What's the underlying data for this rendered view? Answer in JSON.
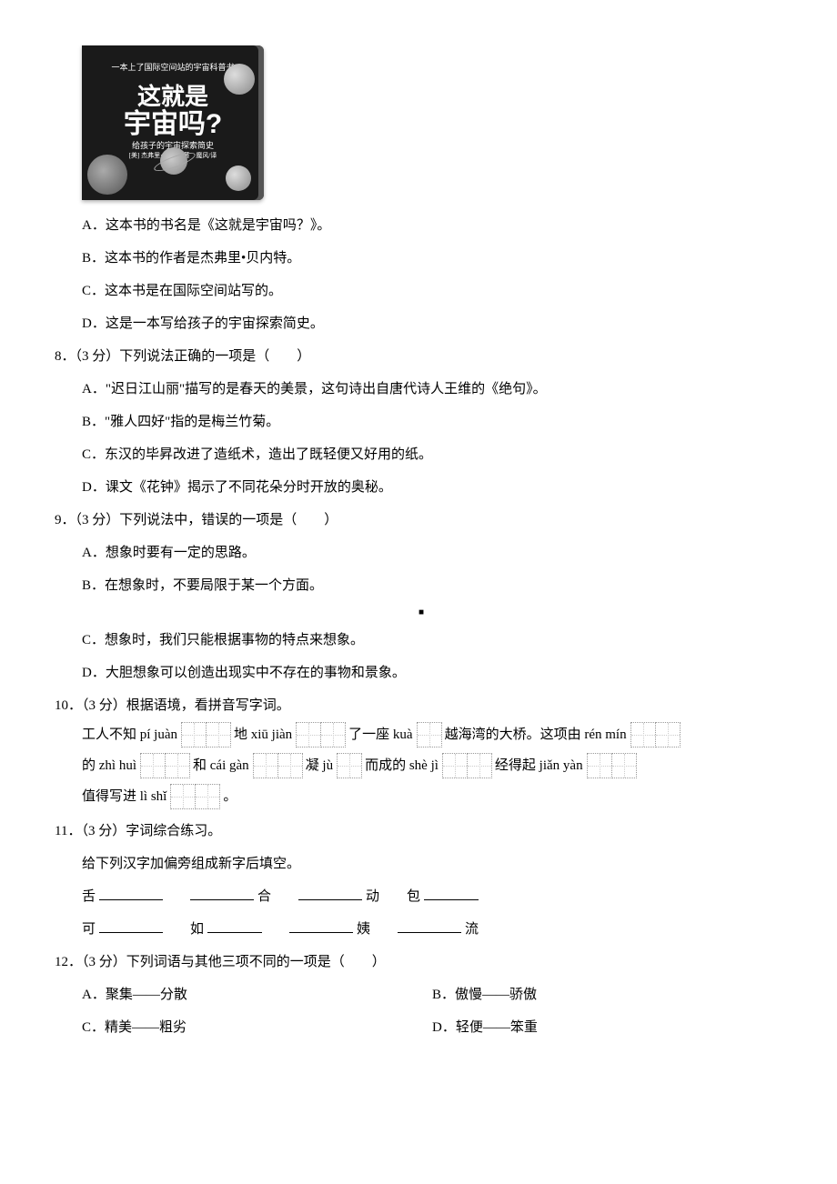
{
  "book": {
    "tagline": "一本上了国际空间站的宇宙科普书",
    "title_line1": "这就是",
    "title_line2": "宇宙吗?",
    "subtitle": "给孩子的宇宙探索简史",
    "author": "[美] 杰弗里·贝内特/著　魔风/译"
  },
  "q7_options": {
    "a": "A．这本书的书名是《这就是宇宙吗？》。",
    "b": "B．这本书的作者是杰弗里•贝内特。",
    "c": "C．这本书是在国际空间站写的。",
    "d": "D．这是一本写给孩子的宇宙探索简史。"
  },
  "q8": {
    "stem": "8．（3 分）下列说法正确的一项是（　　）",
    "a": "A．\"迟日江山丽\"描写的是春天的美景，这句诗出自唐代诗人王维的《绝句》。",
    "b": "B．\"雅人四好\"指的是梅兰竹菊。",
    "c": "C．东汉的毕昇改进了造纸术，造出了既轻便又好用的纸。",
    "d": "D．课文《花钟》揭示了不同花朵分时开放的奥秘。"
  },
  "q9": {
    "stem": "9．（3 分）下列说法中，错误的一项是（　　）",
    "a": "A．想象时要有一定的思路。",
    "b": "B．在想象时，不要局限于某一个方面。",
    "c": "C．想象时，我们只能根据事物的特点来想象。",
    "d": "D．大胆想象可以创造出现实中不存在的事物和景象。"
  },
  "q10": {
    "stem": "10．（3 分）根据语境，看拼音写字词。",
    "line1": {
      "t1": "工人不知 pí juàn",
      "t2": "地 xiū jiàn",
      "t3": "了一座 kuà",
      "t4": "越海湾的大桥。这项由 rén mín"
    },
    "line2": {
      "t1": "的 zhì huì",
      "t2": "和 cái gàn",
      "t3": "凝 jù",
      "t4": "而成的 shè jì",
      "t5": "经得起 jiǎn yàn"
    },
    "line3": {
      "t1": "值得写进 lì shǐ",
      "t2": "。"
    }
  },
  "q11": {
    "stem": "11．（3 分）字词综合练习。",
    "instruction": "给下列汉字加偏旁组成新字后填空。",
    "row1": {
      "c1": "舌",
      "c2": "合",
      "c3": "动",
      "c4": "包"
    },
    "row2": {
      "c1": "可",
      "c2": "如",
      "c3": "姨",
      "c4": "流"
    }
  },
  "q12": {
    "stem": "12．（3 分）下列词语与其他三项不同的一项是（　　）",
    "a": "A．聚集——分散",
    "b": "B．傲慢——骄傲",
    "c": "C．精美——粗劣",
    "d": "D．轻便——笨重"
  },
  "mark": "■"
}
